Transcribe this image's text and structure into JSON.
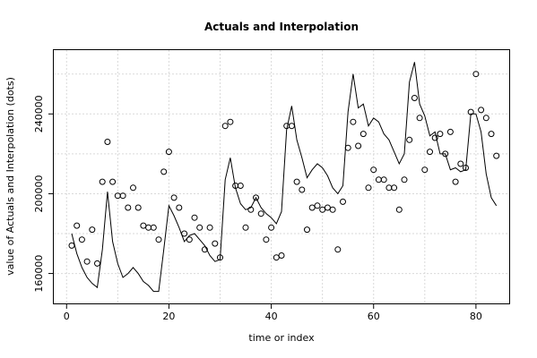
{
  "chart_data": {
    "type": "line",
    "title": "Actuals and Interpolation",
    "xlabel": "time or index",
    "ylabel": "value of Actuals and Interpolation (dots)",
    "xlim": [
      -2.5,
      86.5
    ],
    "ylim": [
      145000,
      272000
    ],
    "x_ticks": [
      0,
      20,
      40,
      60,
      80
    ],
    "y_ticks": [
      160000,
      200000,
      240000
    ],
    "y_tick_labels": [
      "160000",
      "200000",
      "240000"
    ],
    "grid": true,
    "colors": {
      "line": "#000000",
      "points": "#000000",
      "grid": "#d9d9d9"
    },
    "series": [
      {
        "style": "points",
        "x": [
          1,
          2,
          3,
          4,
          5,
          6,
          7,
          8,
          9,
          10,
          11,
          12,
          13,
          14,
          15,
          16,
          17,
          18,
          19,
          20,
          21,
          22,
          23,
          24,
          25,
          26,
          27,
          28,
          29,
          30,
          31,
          32,
          33,
          34,
          35,
          36,
          37,
          38,
          39,
          40,
          41,
          42,
          43,
          44,
          45,
          46,
          47,
          48,
          49,
          50,
          51,
          52,
          53,
          54,
          55,
          56,
          57,
          58,
          59,
          60,
          61,
          62,
          63,
          64,
          65,
          66,
          67,
          68,
          69,
          70,
          71,
          72,
          73,
          74,
          75,
          76,
          77,
          78,
          79,
          80,
          81,
          82,
          83,
          84
        ],
        "values": [
          174000,
          184000,
          177000,
          166000,
          182000,
          165000,
          206000,
          226000,
          206000,
          199000,
          199000,
          193000,
          203000,
          193000,
          184000,
          183000,
          183000,
          177000,
          211000,
          221000,
          198000,
          193000,
          180000,
          177000,
          188000,
          183000,
          172000,
          183000,
          175000,
          168000,
          234000,
          236000,
          204000,
          204000,
          183000,
          192000,
          198000,
          190000,
          177000,
          183000,
          168000,
          169000,
          234000,
          234000,
          206000,
          202000,
          182000,
          193000,
          194000,
          192000,
          193000,
          192000,
          172000,
          196000,
          223000,
          236000,
          224000,
          230000,
          203000,
          212000,
          207000,
          207000,
          203000,
          203000,
          192000,
          207000,
          227000,
          248000,
          238000,
          212000,
          221000,
          228000,
          230000,
          220000,
          231000,
          206000,
          215000,
          213000,
          241000,
          260000,
          242000,
          238000,
          230000,
          219000
        ]
      },
      {
        "style": "line",
        "x": [
          1,
          2,
          3,
          4,
          5,
          6,
          7,
          8,
          9,
          10,
          11,
          12,
          13,
          14,
          15,
          16,
          17,
          18,
          19,
          20,
          21,
          22,
          23,
          24,
          25,
          26,
          27,
          28,
          29,
          30,
          31,
          32,
          33,
          34,
          35,
          36,
          37,
          38,
          39,
          40,
          41,
          42,
          43,
          44,
          45,
          46,
          47,
          48,
          49,
          50,
          51,
          52,
          53,
          54,
          55,
          56,
          57,
          58,
          59,
          60,
          61,
          62,
          63,
          64,
          65,
          66,
          67,
          68,
          69,
          70,
          71,
          72,
          73,
          74,
          75,
          76,
          77,
          78,
          79,
          80,
          81,
          82,
          83,
          84
        ],
        "values": [
          180000,
          170000,
          163000,
          158000,
          155000,
          153000,
          172000,
          201000,
          176000,
          165000,
          158000,
          160000,
          163000,
          160000,
          156000,
          154000,
          151000,
          151000,
          172000,
          194000,
          189000,
          183000,
          176000,
          179000,
          180000,
          177000,
          174000,
          169000,
          166000,
          167000,
          207000,
          218000,
          203000,
          195000,
          192000,
          193000,
          198000,
          193000,
          190000,
          188000,
          185000,
          191000,
          232000,
          244000,
          227000,
          218000,
          208000,
          212000,
          215000,
          213000,
          209000,
          203000,
          200000,
          204000,
          241000,
          260000,
          243000,
          245000,
          234000,
          238000,
          236000,
          230000,
          227000,
          221000,
          215000,
          220000,
          256000,
          266000,
          245000,
          239000,
          229000,
          231000,
          220000,
          220000,
          212000,
          213000,
          211000,
          212000,
          240000,
          240000,
          231000,
          210000,
          198000,
          194000
        ]
      }
    ]
  }
}
